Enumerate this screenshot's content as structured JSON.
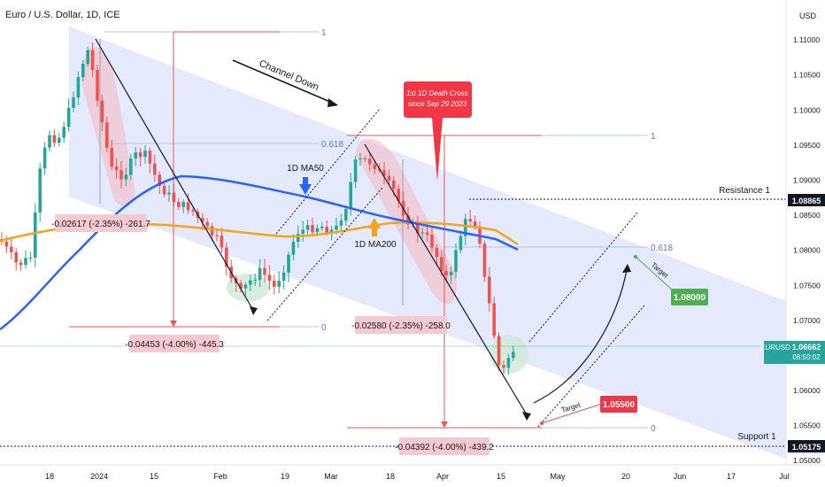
{
  "header": {
    "title": "Euro / U.S. Dollar, 1D, ICE",
    "currency": "USD"
  },
  "colors": {
    "up": "#26a69a",
    "down": "#ef5350",
    "ma50": "#2962ff",
    "ma200": "#f7a21b",
    "channel": "#dfe6fb",
    "fib_h": "#b7c4e6",
    "fib_label": "#5b7bd5",
    "pink": "#f4b6bf",
    "green_zone": "#cfe8d6",
    "red_label": "#f23645",
    "green_label": "#4caf50",
    "axis_text": "#131722",
    "grid_text": "#131722"
  },
  "chart_data": {
    "type": "candlestick",
    "symbol": "EURUSD",
    "timeframe": "1D",
    "y_axis": {
      "ticks": [
        "1.11000",
        "1.10500",
        "1.10000",
        "1.09500",
        "1.09000",
        "1.08500",
        "1.08000",
        "1.07500",
        "1.07000",
        "1.06500",
        "1.06000",
        "1.05500",
        "1.05000"
      ],
      "range": [
        1.0494,
        1.1157
      ]
    },
    "x_axis": {
      "ticks": [
        "18",
        "2024",
        "15",
        "Feb",
        "19",
        "Mar",
        "18",
        "Apr",
        "15",
        "May",
        "20",
        "Jun",
        "17",
        "Jul"
      ]
    },
    "last_price": {
      "label": "EURUSD",
      "value": "1.06662",
      "countdown": "08:50:02"
    },
    "price_labels": [
      {
        "name": "resistance",
        "value": "1.08865",
        "caption": "Resistance 1"
      },
      {
        "name": "support",
        "value": "1.05175",
        "caption": "Support 1"
      }
    ],
    "targets": [
      {
        "value": "1.08000",
        "caption": "Target"
      },
      {
        "value": "1.05500",
        "caption": "Target"
      }
    ],
    "annotations": {
      "channel": "Channel Down",
      "ma50": "1D MA50",
      "ma200": "1D MA200",
      "death_cross": "1st 1D Death Cross since Sep 29 2023",
      "measure1": "-0.02617 (-2.35%) -261.7",
      "measure2": "-0.04453 (-4.00%) -445.3",
      "measure3": "-0.02580 (-2.35%) -258.0",
      "measure4": "-0.04392 (-4.00%) -439.2"
    },
    "fib_levels": [
      {
        "set": 1,
        "values": [
          "1",
          "0.618",
          "0"
        ]
      },
      {
        "set": 2,
        "values": [
          "1",
          "0.618",
          "0"
        ]
      }
    ]
  }
}
